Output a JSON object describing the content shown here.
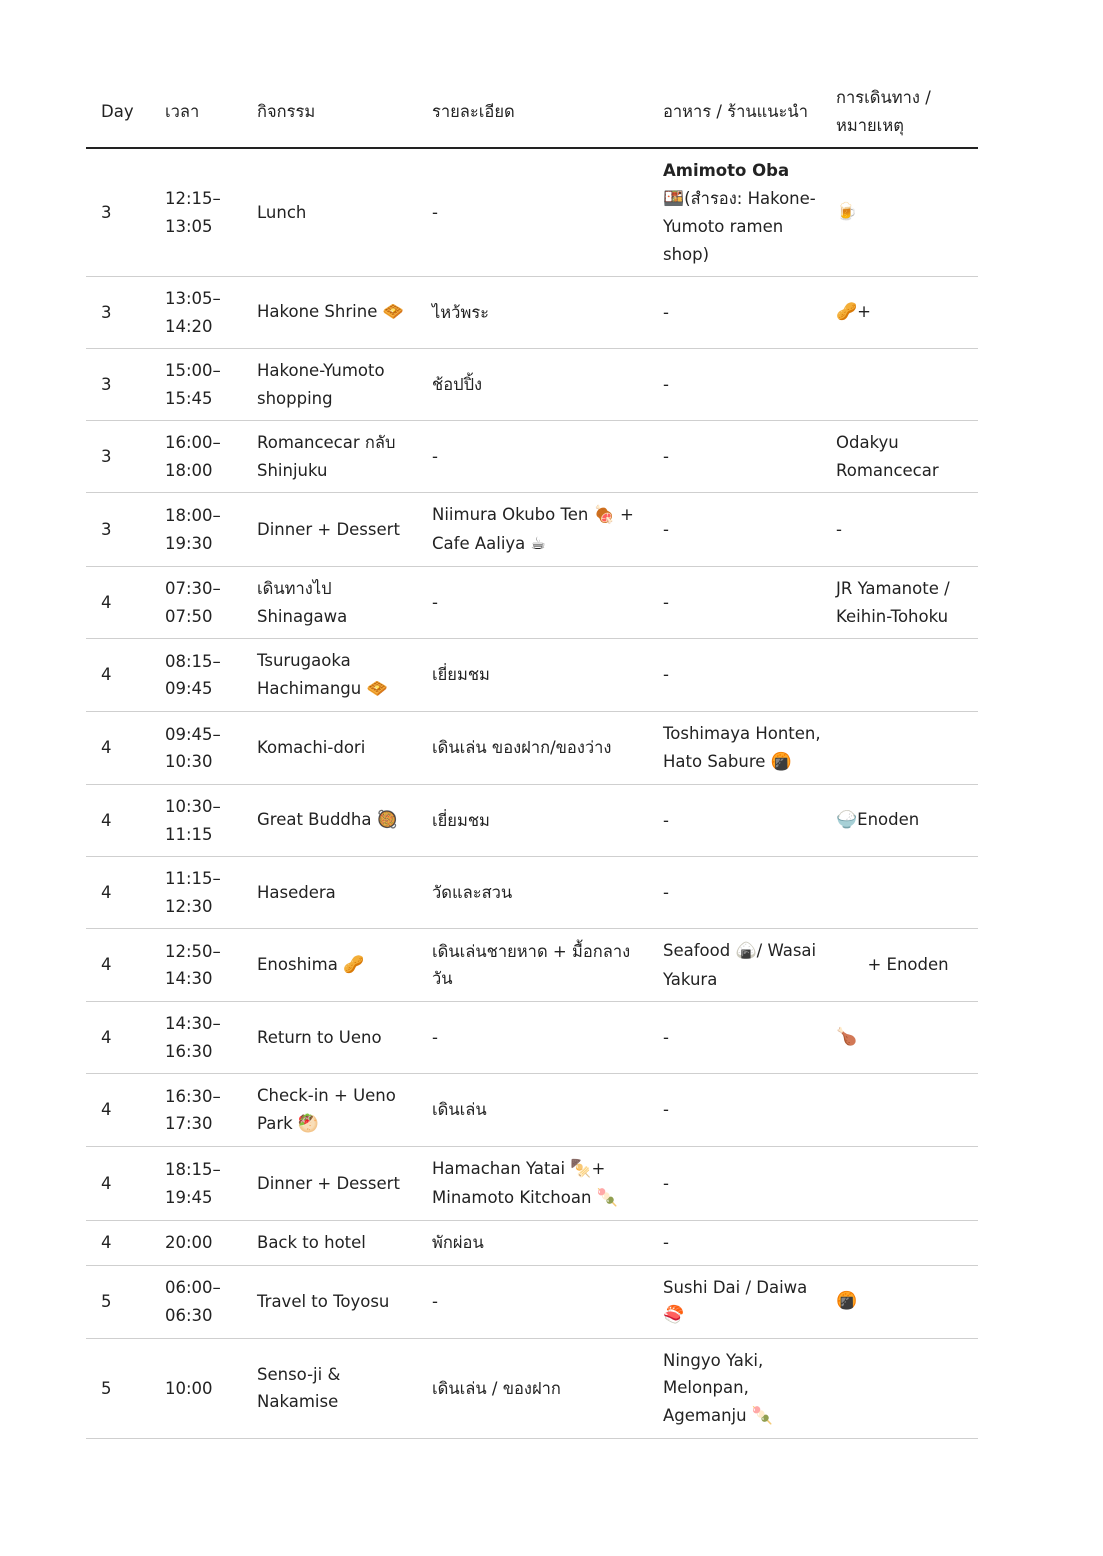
{
  "headers": [
    "Day",
    "เวลา",
    "กิจกรรม",
    "รายละเอียด",
    "อาหาร / ร้านแนะนำ",
    "การเดินทาง / หมายเหตุ"
  ],
  "rows": [
    {
      "day": "3",
      "time": "12:15–13:05",
      "activity": [
        {
          "t": "Lunch"
        }
      ],
      "detail": [
        {
          "t": "-"
        }
      ],
      "food": [
        {
          "b": "Amimoto Oba"
        },
        {
          "e": "🍱"
        },
        {
          "t": "(สำรอง: Hakone-Yumoto ramen shop)"
        }
      ],
      "travel": [
        {
          "e": "🍺"
        }
      ]
    },
    {
      "day": "3",
      "time": "13:05–14:20",
      "activity": [
        {
          "t": "Hakone Shrine "
        },
        {
          "e": "🧇"
        }
      ],
      "detail": [
        {
          "t": "ไหว้พระ"
        }
      ],
      "food": [
        {
          "t": "-"
        }
      ],
      "travel": [
        {
          "e": "🥜"
        },
        {
          "t": "+"
        }
      ]
    },
    {
      "day": "3",
      "time": "15:00–15:45",
      "activity": [
        {
          "t": "Hakone-Yumoto shopping"
        }
      ],
      "detail": [
        {
          "t": "ช้อปปิ้ง"
        }
      ],
      "food": [
        {
          "t": "-"
        }
      ],
      "travel": []
    },
    {
      "day": "3",
      "time": "16:00–18:00",
      "activity": [
        {
          "t": "Romancecar กลับ Shinjuku"
        }
      ],
      "detail": [
        {
          "t": "-"
        }
      ],
      "food": [
        {
          "t": "-"
        }
      ],
      "travel": [
        {
          "t": "Odakyu Romancecar"
        }
      ]
    },
    {
      "day": "3",
      "time": "18:00–19:30",
      "activity": [
        {
          "t": "Dinner + Dessert"
        }
      ],
      "detail": [
        {
          "t": "Niimura Okubo Ten "
        },
        {
          "e": "🍖"
        },
        {
          "t": " + Cafe Aaliya "
        },
        {
          "e": "☕"
        }
      ],
      "food": [
        {
          "t": "-"
        }
      ],
      "travel": [
        {
          "t": "-"
        }
      ]
    },
    {
      "day": "4",
      "time": "07:30–07:50",
      "activity": [
        {
          "t": "เดินทางไป Shinagawa"
        }
      ],
      "detail": [
        {
          "t": "-"
        }
      ],
      "food": [
        {
          "t": "-"
        }
      ],
      "travel": [
        {
          "t": "JR Yamanote / Keihin-Tohoku"
        }
      ]
    },
    {
      "day": "4",
      "time": "08:15–09:45",
      "activity": [
        {
          "t": "Tsurugaoka Hachimangu "
        },
        {
          "e": "🧇"
        }
      ],
      "detail": [
        {
          "t": "เยี่ยมชม"
        }
      ],
      "food": [
        {
          "t": "-"
        }
      ],
      "travel": []
    },
    {
      "day": "4",
      "time": "09:45–10:30",
      "activity": [
        {
          "t": "Komachi-dori"
        }
      ],
      "detail": [
        {
          "t": "เดินเล่น ของฝาก/ของว่าง"
        }
      ],
      "food": [
        {
          "t": "Toshimaya Honten, Hato Sabure "
        },
        {
          "e": "🍘"
        }
      ],
      "travel": []
    },
    {
      "day": "4",
      "time": "10:30–11:15",
      "activity": [
        {
          "t": "Great Buddha "
        },
        {
          "e": "🥘"
        }
      ],
      "detail": [
        {
          "t": "เยี่ยมชม"
        }
      ],
      "food": [
        {
          "t": "-"
        }
      ],
      "travel": [
        {
          "e": "🍚"
        },
        {
          "t": "Enoden"
        }
      ]
    },
    {
      "day": "4",
      "time": "11:15–12:30",
      "activity": [
        {
          "t": "Hasedera"
        }
      ],
      "detail": [
        {
          "t": "วัดและสวน"
        }
      ],
      "food": [
        {
          "t": "-"
        }
      ],
      "travel": []
    },
    {
      "day": "4",
      "time": "12:50–14:30",
      "activity": [
        {
          "t": "Enoshima "
        },
        {
          "e": "🥜"
        }
      ],
      "detail": [
        {
          "t": "เดินเล่นชายหาด + มื้อกลางวัน"
        }
      ],
      "food": [
        {
          "t": "Seafood "
        },
        {
          "e": "🍙"
        },
        {
          "t": "/ Wasai Yakura"
        }
      ],
      "travel": [
        {
          "t": "      + Enoden"
        }
      ]
    },
    {
      "day": "4",
      "time": "14:30–16:30",
      "activity": [
        {
          "t": "Return to Ueno"
        }
      ],
      "detail": [
        {
          "t": "-"
        }
      ],
      "food": [
        {
          "t": "-"
        }
      ],
      "travel": [
        {
          "e": "🍗"
        }
      ]
    },
    {
      "day": "4",
      "time": "16:30–17:30",
      "activity": [
        {
          "t": "Check-in + Ueno Park "
        },
        {
          "e": "🥙"
        }
      ],
      "detail": [
        {
          "t": "เดินเล่น"
        }
      ],
      "food": [
        {
          "t": "-"
        }
      ],
      "travel": []
    },
    {
      "day": "4",
      "time": "18:15–19:45",
      "activity": [
        {
          "t": "Dinner + Dessert"
        }
      ],
      "detail": [
        {
          "t": "Hamachan Yatai "
        },
        {
          "e": "🍢"
        },
        {
          "t": "+ Minamoto Kitchoan "
        },
        {
          "e": "🍡"
        }
      ],
      "food": [
        {
          "t": "-"
        }
      ],
      "travel": []
    },
    {
      "day": "4",
      "time": "20:00",
      "activity": [
        {
          "t": "Back to hotel"
        }
      ],
      "detail": [
        {
          "t": "พักผ่อน"
        }
      ],
      "food": [
        {
          "t": "-"
        }
      ],
      "travel": []
    },
    {
      "day": "5",
      "time": "06:00–06:30",
      "activity": [
        {
          "t": "Travel to Toyosu"
        }
      ],
      "detail": [
        {
          "t": "-"
        }
      ],
      "food": [
        {
          "t": "Sushi Dai / Daiwa "
        },
        {
          "e": "🍣"
        }
      ],
      "travel": [
        {
          "e": "🍘"
        }
      ]
    },
    {
      "day": "5",
      "time": "10:00",
      "activity": [
        {
          "t": "Senso-ji & Nakamise"
        }
      ],
      "detail": [
        {
          "t": "เดินเล่น / ของฝาก"
        }
      ],
      "food": [
        {
          "t": "Ningyo Yaki, Melonpan, Agemanju "
        },
        {
          "e": "🍡"
        }
      ],
      "travel": []
    }
  ]
}
